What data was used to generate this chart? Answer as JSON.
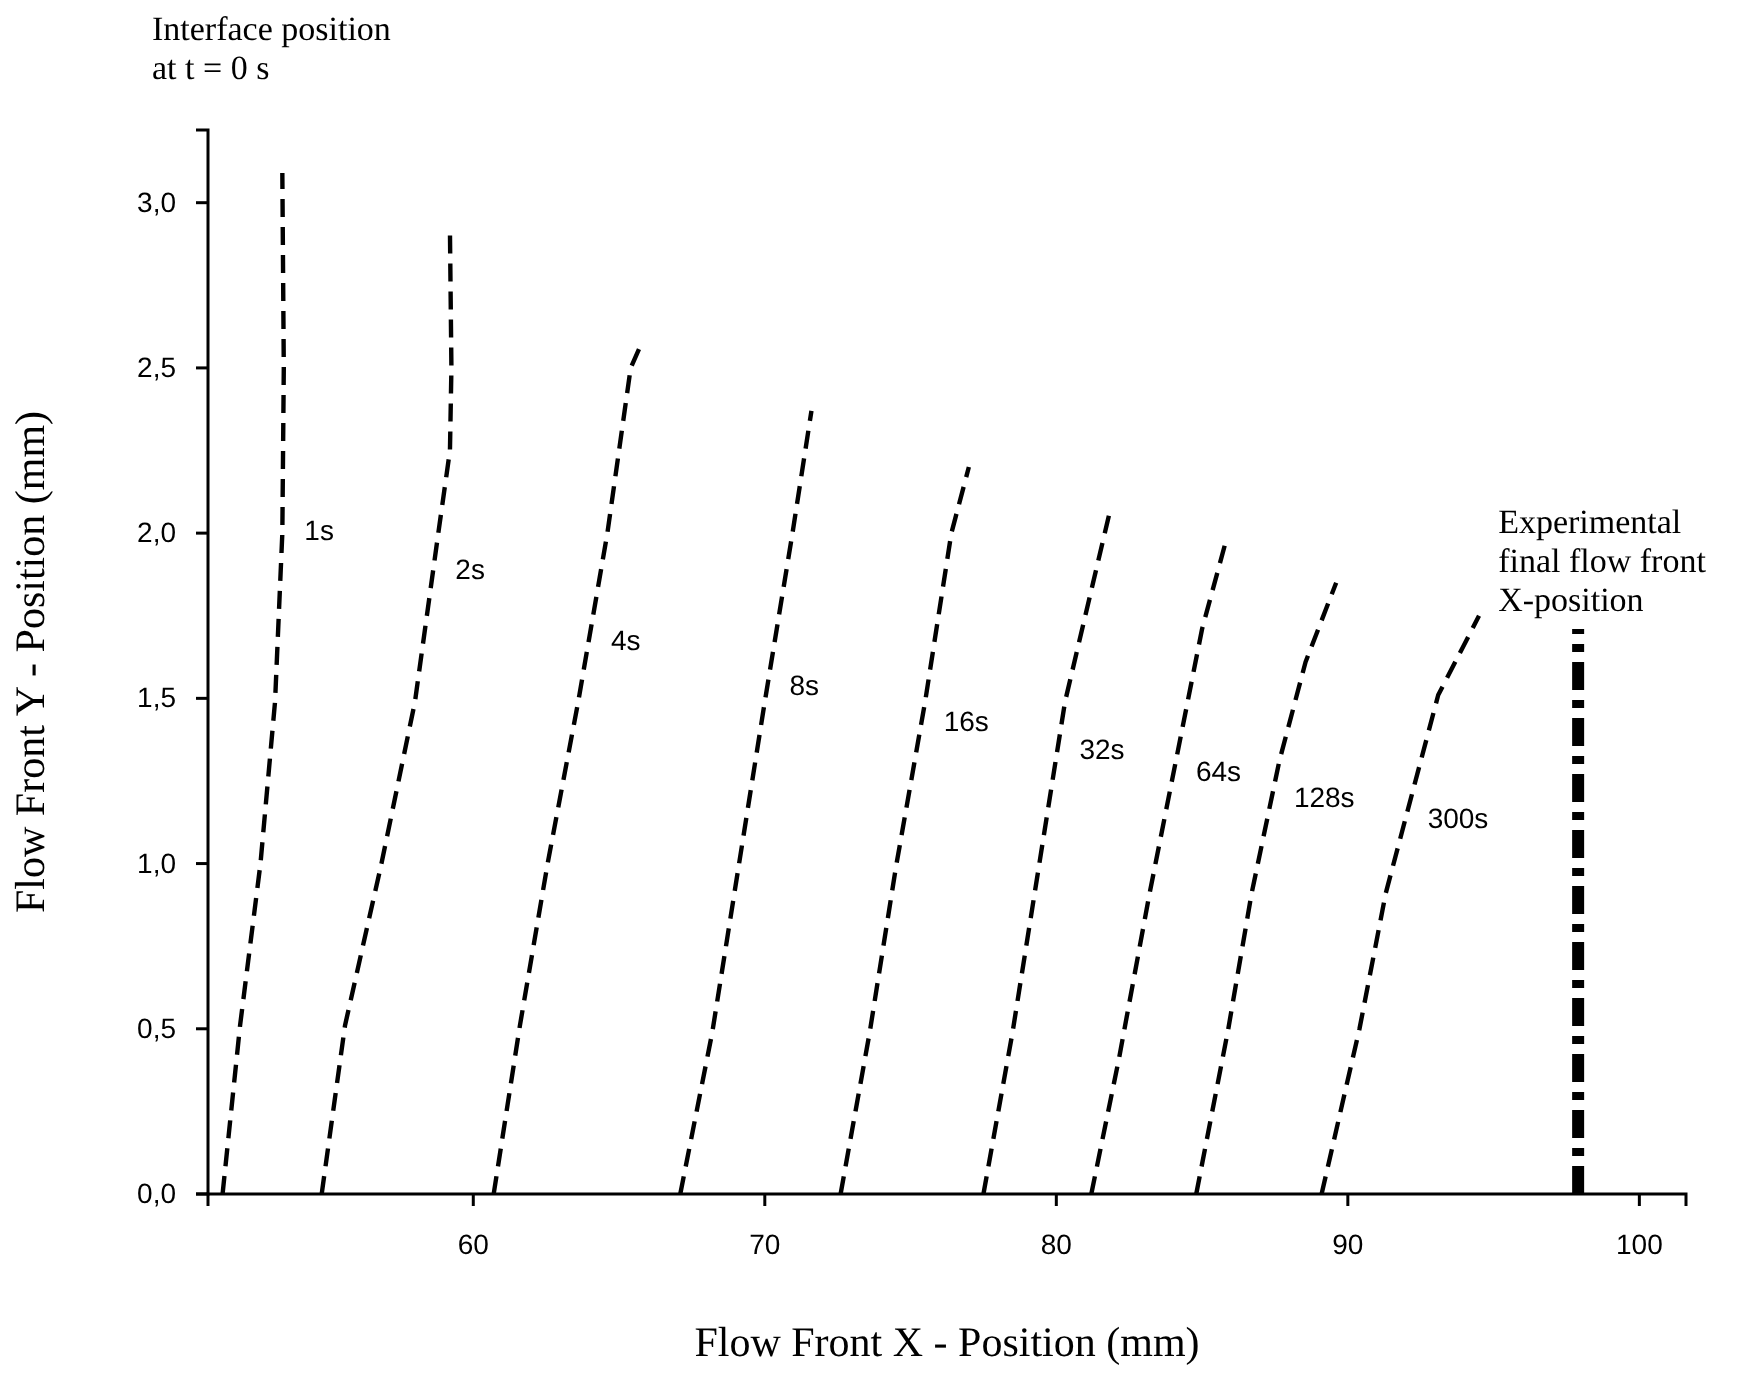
{
  "chart_data": {
    "type": "line",
    "xlabel": "Flow Front X - Position (mm)",
    "ylabel": "Flow Front Y - Position (mm)",
    "annotations": [
      "Interface position at t = 0 s"
    ],
    "xlim": [
      50.9,
      101.6
    ],
    "xticks": [
      60,
      70,
      80,
      90,
      100
    ],
    "ylim": [
      0,
      3.22
    ],
    "yticks": [
      {
        "value": 0,
        "label": "0,0"
      },
      {
        "value": 0.5,
        "label": "0,5"
      },
      {
        "value": 1,
        "label": "1,0"
      },
      {
        "value": 1.5,
        "label": "1,5"
      },
      {
        "value": 2,
        "label": "2,0"
      },
      {
        "value": 2.5,
        "label": "2,5"
      },
      {
        "value": 3,
        "label": "3,0"
      }
    ],
    "grid": false,
    "legend": false,
    "line_style": "dashed",
    "marker": "none",
    "series": [
      {
        "name": "1s",
        "color": "#000000",
        "x": [
          51.4,
          52.0,
          52.7,
          53.2,
          53.45,
          53.5,
          53.45
        ],
        "values": [
          0,
          0.51,
          1.0,
          1.49,
          2.0,
          2.5,
          3.09
        ]
      },
      {
        "name": "2s",
        "color": "#000000",
        "x": [
          54.8,
          55.6,
          56.85,
          58.0,
          58.8,
          59.2,
          59.25,
          59.2
        ],
        "values": [
          0,
          0.51,
          1.0,
          1.49,
          2.0,
          2.25,
          2.5,
          2.91
        ]
      },
      {
        "name": "4s",
        "color": "#000000",
        "x": [
          60.7,
          61.6,
          62.55,
          63.6,
          64.6,
          65.4,
          65.8
        ],
        "values": [
          0,
          0.51,
          1.0,
          1.49,
          2.0,
          2.5,
          2.58
        ]
      },
      {
        "name": "8s",
        "color": "#000000",
        "x": [
          67.1,
          68.2,
          69.1,
          70.0,
          70.95,
          71.6
        ],
        "values": [
          0,
          0.49,
          0.99,
          1.49,
          2.0,
          2.37
        ]
      },
      {
        "name": "16s",
        "color": "#000000",
        "x": [
          72.6,
          73.6,
          74.5,
          75.5,
          76.4,
          77.0
        ],
        "values": [
          0,
          0.49,
          0.99,
          1.49,
          2.0,
          2.2
        ]
      },
      {
        "name": "32s",
        "color": "#000000",
        "x": [
          77.5,
          78.5,
          79.4,
          80.3,
          81.85
        ],
        "values": [
          0,
          0.49,
          0.99,
          1.49,
          2.07
        ]
      },
      {
        "name": "64s",
        "color": "#000000",
        "x": [
          81.2,
          82.15,
          83.2,
          84.1,
          85.0,
          85.8
        ],
        "values": [
          0,
          0.41,
          0.91,
          1.31,
          1.71,
          1.97
        ]
      },
      {
        "name": "128s",
        "color": "#000000",
        "x": [
          84.8,
          85.9,
          86.7,
          87.65,
          88.55,
          89.6
        ],
        "values": [
          0,
          0.5,
          0.91,
          1.31,
          1.61,
          1.85
        ]
      },
      {
        "name": "300s",
        "color": "#000000",
        "x": [
          89.1,
          90.4,
          91.3,
          92.2,
          93.1,
          94.5
        ],
        "values": [
          0,
          0.5,
          0.91,
          1.21,
          1.51,
          1.75
        ]
      },
      {
        "name": "Experimental final flow front X-position",
        "color": "#000000",
        "x": [
          97.9,
          97.9
        ],
        "values": [
          0,
          1.71
        ]
      }
    ]
  }
}
